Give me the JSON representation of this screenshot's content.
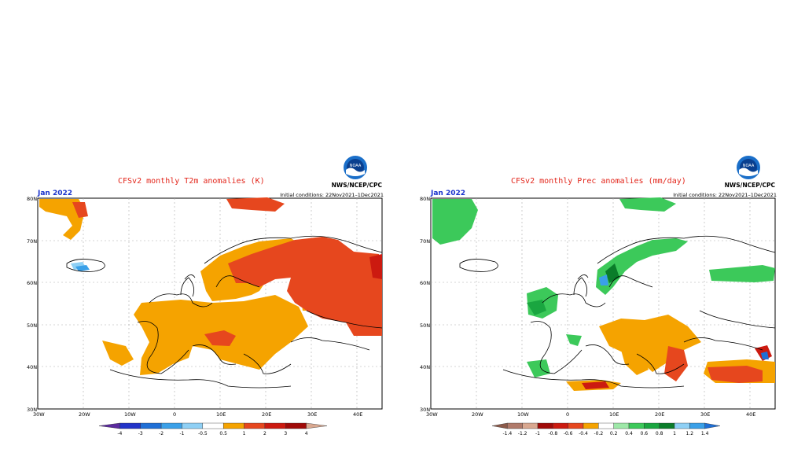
{
  "panels": [
    {
      "title": "CFSv2 monthly T2m anomalies (K)",
      "month": "Jan 2022",
      "initial_conditions": "Initial conditions: 22Nov2021–1Dec2021",
      "org": "NWS/NCEP/CPC",
      "logo": "noaa-logo",
      "lat_labels": [
        "80N",
        "70N",
        "60N",
        "50N",
        "40N",
        "30N"
      ],
      "lon_labels": [
        "30W",
        "20W",
        "10W",
        "0",
        "10E",
        "20E",
        "30E",
        "40E"
      ],
      "colorbar_labels": [
        "-4",
        "-3",
        "-2",
        "-1",
        "-0.5",
        "0.5",
        "1",
        "2",
        "3",
        "4"
      ],
      "colorbar_colors": [
        "#5b2a9e",
        "#2233c8",
        "#1f6fd6",
        "#3aa0e8",
        "#8fd0f5",
        "#ffffff",
        "#f5a300",
        "#e6471e",
        "#cc1a10",
        "#a00a08",
        "#d9a890"
      ]
    },
    {
      "title": "CFSv2 monthly Prec anomalies (mm/day)",
      "month": "Jan 2022",
      "initial_conditions": "Initial conditions: 22Nov2021–1Dec2021",
      "org": "NWS/NCEP/CPC",
      "logo": "noaa-logo",
      "lat_labels": [
        "80N",
        "70N",
        "60N",
        "50N",
        "40N",
        "30N"
      ],
      "lon_labels": [
        "30W",
        "20W",
        "10W",
        "0",
        "10E",
        "20E",
        "30E",
        "40E"
      ],
      "colorbar_labels": [
        "-1.4",
        "-1.2",
        "-1",
        "-0.8",
        "-0.6",
        "-0.4",
        "-0.2",
        "0.2",
        "0.4",
        "0.6",
        "0.8",
        "1",
        "1.2",
        "1.4"
      ],
      "colorbar_colors": [
        "#8c5a4a",
        "#b07a6a",
        "#d9a890",
        "#a00a08",
        "#cc1a10",
        "#e6471e",
        "#f5a300",
        "#ffffff",
        "#9ee8a8",
        "#3cc95a",
        "#1aa640",
        "#0a7d2a",
        "#8fd0f5",
        "#3aa0e8",
        "#1f6fd6"
      ]
    }
  ]
}
